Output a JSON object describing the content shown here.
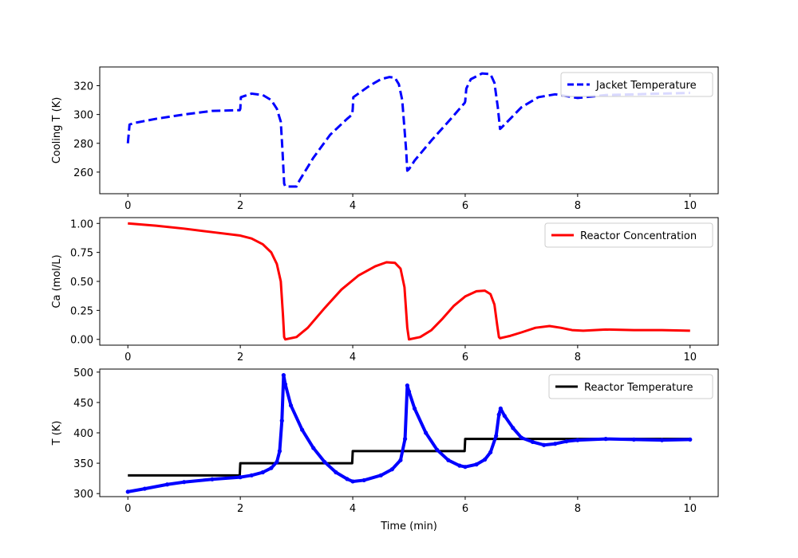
{
  "chart_data": [
    {
      "type": "line",
      "xlabel": "",
      "ylabel": "Cooling T (K)",
      "xlim": [
        -0.5,
        10.5
      ],
      "ylim": [
        245,
        333
      ],
      "xticks": [
        0,
        2,
        4,
        6,
        8,
        10
      ],
      "yticks": [
        260,
        280,
        300,
        320
      ],
      "grid": false,
      "legend_position": "top-right",
      "series": [
        {
          "name": "Jacket Temperature",
          "color": "#0000ff",
          "style": "dashed",
          "x": [
            0,
            0.03,
            0.1,
            0.5,
            1.0,
            1.5,
            1.99,
            2.0,
            2.01,
            2.2,
            2.4,
            2.55,
            2.65,
            2.72,
            2.75,
            2.78,
            2.8,
            3.0,
            3.05,
            3.3,
            3.6,
            3.9,
            3.99,
            4.0,
            4.01,
            4.3,
            4.5,
            4.65,
            4.75,
            4.82,
            4.88,
            4.95,
            4.97,
            5.0,
            5.1,
            5.4,
            5.7,
            5.99,
            6.0,
            6.02,
            6.1,
            6.3,
            6.45,
            6.52,
            6.58,
            6.62,
            6.65,
            7.0,
            7.3,
            7.6,
            8.0,
            8.5,
            9.0,
            9.5,
            10.0
          ],
          "y": [
            280,
            293,
            294,
            297,
            300,
            302.5,
            303,
            304,
            312,
            314.5,
            313.5,
            310,
            304,
            295,
            275,
            252,
            250,
            250,
            254,
            270,
            286,
            297,
            300,
            304,
            312,
            320,
            324.5,
            326,
            325.5,
            321,
            310,
            275,
            261,
            262,
            268,
            282,
            295,
            308,
            309,
            318,
            324.5,
            328.5,
            328,
            322,
            305,
            290,
            291,
            305,
            312,
            314,
            311.5,
            313.5,
            314,
            314.5,
            315
          ]
        }
      ]
    },
    {
      "type": "line",
      "xlabel": "",
      "ylabel": "Ca (mol/L)",
      "xlim": [
        -0.5,
        10.5
      ],
      "ylim": [
        -0.05,
        1.05
      ],
      "xticks": [
        0,
        2,
        4,
        6,
        8,
        10
      ],
      "yticks": [
        0.0,
        0.25,
        0.5,
        0.75,
        1.0
      ],
      "ytick_labels": [
        "0.00",
        "0.25",
        "0.50",
        "0.75",
        "1.00"
      ],
      "grid": false,
      "legend_position": "top-right",
      "series": [
        {
          "name": "Reactor Concentration",
          "color": "#ff0000",
          "style": "solid",
          "x": [
            0,
            0.5,
            1.0,
            1.5,
            2.0,
            2.2,
            2.4,
            2.55,
            2.65,
            2.72,
            2.76,
            2.78,
            2.8,
            3.0,
            3.2,
            3.5,
            3.8,
            4.1,
            4.4,
            4.6,
            4.75,
            4.85,
            4.92,
            4.97,
            5.0,
            5.2,
            5.4,
            5.6,
            5.8,
            6.0,
            6.2,
            6.35,
            6.45,
            6.52,
            6.57,
            6.6,
            6.62,
            6.8,
            7.0,
            7.25,
            7.5,
            7.7,
            7.9,
            8.1,
            8.5,
            9.0,
            9.5,
            10.0
          ],
          "y": [
            1.0,
            0.98,
            0.955,
            0.925,
            0.895,
            0.87,
            0.82,
            0.75,
            0.65,
            0.5,
            0.2,
            0.02,
            0.0,
            0.02,
            0.1,
            0.27,
            0.43,
            0.55,
            0.63,
            0.665,
            0.66,
            0.61,
            0.45,
            0.1,
            0.0,
            0.02,
            0.08,
            0.18,
            0.29,
            0.37,
            0.415,
            0.42,
            0.39,
            0.3,
            0.12,
            0.02,
            0.01,
            0.03,
            0.06,
            0.1,
            0.115,
            0.1,
            0.08,
            0.075,
            0.085,
            0.08,
            0.08,
            0.075
          ]
        }
      ]
    },
    {
      "type": "line",
      "xlabel": "Time (min)",
      "ylabel": "T (K)",
      "xlim": [
        -0.5,
        10.5
      ],
      "ylim": [
        295,
        505
      ],
      "xticks": [
        0,
        2,
        4,
        6,
        8,
        10
      ],
      "yticks": [
        300,
        350,
        400,
        450,
        500
      ],
      "grid": false,
      "legend_position": "top-right",
      "series": [
        {
          "name": "Reactor Temperature",
          "color": "#000000",
          "style": "step",
          "x": [
            0,
            1.99,
            2.0,
            3.99,
            4.0,
            5.99,
            6.0,
            10.0
          ],
          "y": [
            330,
            330,
            350,
            350,
            370,
            370,
            390,
            390
          ]
        },
        {
          "name": "",
          "color": "#0000ff",
          "style": "solid-marker",
          "x": [
            0,
            0.3,
            0.7,
            1.0,
            1.5,
            2.0,
            2.2,
            2.4,
            2.55,
            2.65,
            2.7,
            2.74,
            2.77,
            2.8,
            2.9,
            3.1,
            3.3,
            3.5,
            3.7,
            3.9,
            4.0,
            4.2,
            4.5,
            4.7,
            4.85,
            4.93,
            4.97,
            5.0,
            5.1,
            5.3,
            5.5,
            5.7,
            5.9,
            6.0,
            6.2,
            6.35,
            6.45,
            6.55,
            6.6,
            6.63,
            6.7,
            6.85,
            7.0,
            7.2,
            7.4,
            7.6,
            7.8,
            8.0,
            8.5,
            9.0,
            9.5,
            10.0
          ],
          "y": [
            303,
            308,
            315,
            319,
            323.5,
            327,
            330,
            335,
            342,
            352,
            370,
            420,
            495,
            480,
            445,
            405,
            375,
            352,
            335,
            324,
            320,
            322,
            330,
            340,
            355,
            390,
            478,
            468,
            440,
            400,
            372,
            355,
            346,
            344,
            348,
            356,
            368,
            395,
            430,
            440,
            428,
            408,
            392,
            385,
            380,
            382,
            386,
            388,
            390,
            389,
            388,
            389
          ]
        }
      ]
    }
  ]
}
